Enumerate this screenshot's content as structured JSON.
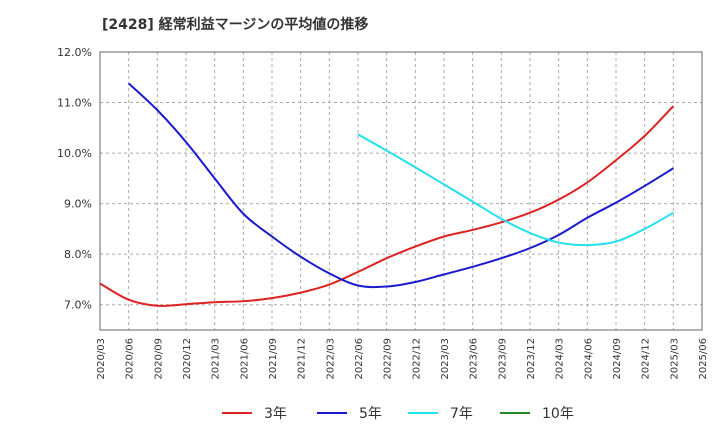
{
  "chart_data": {
    "type": "line",
    "title": "[2428]  経常利益マージンの平均値の推移",
    "xlabel": "",
    "ylabel": "",
    "ylim": [
      6.5,
      12.0
    ],
    "y_ticks": [
      "12.0%",
      "11.0%",
      "10.0%",
      "9.0%",
      "8.0%",
      "7.0%"
    ],
    "y_tick_values": [
      12.0,
      11.0,
      10.0,
      9.0,
      8.0,
      7.0
    ],
    "x_ticks": [
      "2020/03",
      "2020/06",
      "2020/09",
      "2020/12",
      "2021/03",
      "2021/06",
      "2021/09",
      "2021/12",
      "2022/03",
      "2022/06",
      "2022/09",
      "2022/12",
      "2023/03",
      "2023/06",
      "2023/09",
      "2023/12",
      "2024/03",
      "2024/06",
      "2024/09",
      "2024/12",
      "2025/03",
      "2025/06"
    ],
    "grid": true,
    "legend_position": "bottom",
    "series": [
      {
        "name": "3年",
        "color": "#dd2222",
        "start_index": 0,
        "values": [
          7.42,
          7.1,
          6.98,
          7.01,
          7.05,
          7.07,
          7.13,
          7.24,
          7.4,
          7.65,
          7.92,
          8.15,
          8.35,
          8.48,
          8.63,
          8.82,
          9.08,
          9.42,
          9.86,
          10.34,
          10.93
        ]
      },
      {
        "name": "5年",
        "color": "#1a1acc",
        "start_index": 1,
        "values": [
          11.38,
          10.85,
          10.22,
          9.5,
          8.8,
          8.35,
          7.95,
          7.62,
          7.38,
          7.36,
          7.45,
          7.6,
          7.75,
          7.92,
          8.12,
          8.38,
          8.72,
          9.02,
          9.35,
          9.7
        ]
      },
      {
        "name": "7年",
        "color": "#22e0ee",
        "start_index": 9,
        "values": [
          10.37,
          10.05,
          9.72,
          9.38,
          9.04,
          8.7,
          8.42,
          8.23,
          8.18,
          8.25,
          8.5,
          8.82
        ]
      },
      {
        "name": "10年",
        "color": "#228822",
        "start_index": 0,
        "values": []
      }
    ]
  }
}
